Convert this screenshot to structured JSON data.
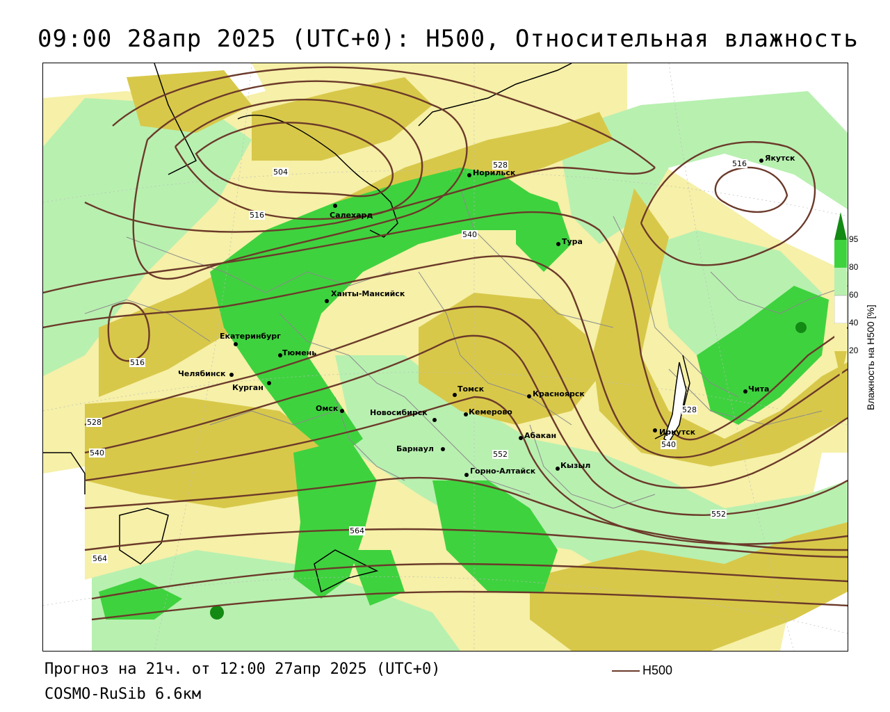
{
  "title": "09:00 28апр 2025 (UTC+0): H500, Относительная влажность",
  "footer": {
    "forecast": "Прогноз на 21ч. от 12:00 27апр 2025 (UTC+0)",
    "model": "COSMO-RuSib 6.6км"
  },
  "legend": {
    "h500_label": "H500",
    "line_color": "#6b3a2a"
  },
  "colorbar": {
    "title": "Влажность на H500 [%]",
    "ticks": [
      "95",
      "80",
      "60",
      "40",
      "20"
    ],
    "colors": {
      "dark_green": "#138a13",
      "green": "#3fd23f",
      "light_green": "#b8f0b0",
      "white": "#ffffff",
      "light_yellow": "#f6f0a8",
      "yellow": "#d8c84a"
    }
  },
  "cities": [
    {
      "name": "Норильск"
    },
    {
      "name": "Якутск"
    },
    {
      "name": "Салехард"
    },
    {
      "name": "Тура"
    },
    {
      "name": "Ханты-Мансийск"
    },
    {
      "name": "Екатеринбург"
    },
    {
      "name": "Тюмень"
    },
    {
      "name": "Челябинск"
    },
    {
      "name": "Курган"
    },
    {
      "name": "Омск"
    },
    {
      "name": "Новосибирск"
    },
    {
      "name": "Томск"
    },
    {
      "name": "Кемерово"
    },
    {
      "name": "Красноярск"
    },
    {
      "name": "Абакан"
    },
    {
      "name": "Барнаул"
    },
    {
      "name": "Горно-Алтайск"
    },
    {
      "name": "Кызыл"
    },
    {
      "name": "Иркутск"
    },
    {
      "name": "Чита"
    }
  ],
  "contour_labels": [
    "504",
    "516",
    "528",
    "540",
    "516",
    "516",
    "528",
    "540",
    "552",
    "564",
    "528",
    "540",
    "552",
    "564"
  ]
}
